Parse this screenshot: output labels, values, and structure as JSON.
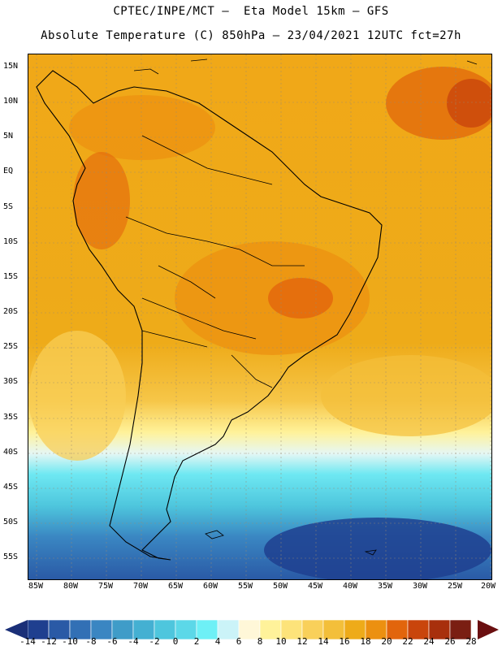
{
  "header": {
    "line1": "CPTEC/INPE/MCT –  Eta Model 15km – GFS",
    "line2": "Absolute Temperature (C) 850hPa – 23/04/2021 12UTC fct=27h"
  },
  "map": {
    "lat_labels": [
      "15N",
      "10N",
      "5N",
      "EQ",
      "5S",
      "10S",
      "15S",
      "20S",
      "25S",
      "30S",
      "35S",
      "40S",
      "45S",
      "50S",
      "55S"
    ],
    "lon_labels": [
      "85W",
      "80W",
      "75W",
      "70W",
      "65W",
      "60W",
      "55W",
      "50W",
      "45W",
      "40W",
      "35W",
      "30W",
      "25W",
      "20W"
    ]
  },
  "colorbar": {
    "labels": [
      "-14",
      "-12",
      "-10",
      "-8",
      "-6",
      "-4",
      "-2",
      "0",
      "2",
      "4",
      "6",
      "8",
      "10",
      "12",
      "14",
      "16",
      "18",
      "20",
      "22",
      "24",
      "26",
      "28"
    ],
    "colors": [
      "#1f3f8f",
      "#2a5aa6",
      "#3270b5",
      "#3a86c2",
      "#3f9cc8",
      "#44b0d2",
      "#4ec6dd",
      "#5cd8e8",
      "#6ef0f6",
      "#cbf3f8",
      "#fff7d8",
      "#fff29a",
      "#fde37a",
      "#f9d05a",
      "#f3bf3a",
      "#eeab19",
      "#ec9010",
      "#e2650c",
      "#c9450c",
      "#a8300c",
      "#7a1e12"
    ],
    "low_cap_color": "#1a2f78",
    "high_cap_color": "#6a0f10"
  }
}
